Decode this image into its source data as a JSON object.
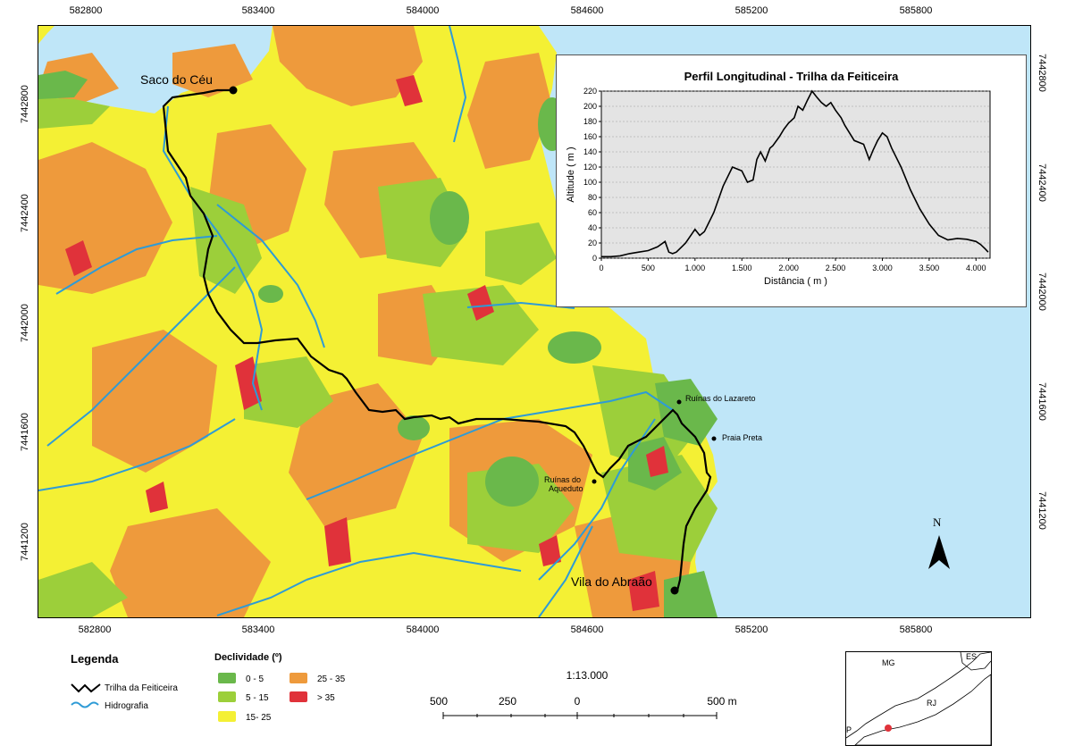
{
  "map": {
    "x_ticks": [
      "582800",
      "583400",
      "584000",
      "584600",
      "585200",
      "585800"
    ],
    "y_ticks": [
      "7442800",
      "7442400",
      "7442000",
      "7441600",
      "7441200"
    ],
    "places": {
      "saco_do_ceu": "Saco do Céu",
      "vila_do_abraao": "Vila do Abraão",
      "ruinas_lazareto": "Ruínas do Lazareto",
      "praia_preta": "Praia Preta",
      "ruinas_aqueduto_1": "Ruínas do",
      "ruinas_aqueduto_2": "Aqueduto"
    },
    "north_label": "N",
    "colors": {
      "water": "#bfe6f8",
      "slope_0_5": "#6ab84b",
      "slope_5_15": "#9ccf3a",
      "slope_15_25": "#f4f034",
      "slope_25_35": "#ee9a3c",
      "slope_gt_35": "#e0323a",
      "trail": "#000000",
      "rivers": "#2e9bd6"
    }
  },
  "profile": {
    "title": "Perfil Longitudinal - Trilha da Feiticeira",
    "y_label": "Altitude ( m )",
    "x_label": "Distância ( m )"
  },
  "chart_data": {
    "type": "line",
    "title": "Perfil Longitudinal - Trilha da Feiticeira",
    "xlabel": "Distância ( m )",
    "ylabel": "Altitude ( m )",
    "xlim": [
      0,
      4150
    ],
    "ylim": [
      0,
      220
    ],
    "x_tick_labels": [
      "0",
      "500",
      "1.000",
      "1.500",
      "2.000",
      "2.500",
      "3.000",
      "3.500",
      "4.000"
    ],
    "x_tick_values": [
      0,
      500,
      1000,
      1500,
      2000,
      2500,
      3000,
      3500,
      4000
    ],
    "y_tick_values": [
      0,
      20,
      40,
      60,
      80,
      100,
      120,
      140,
      160,
      180,
      200,
      220
    ],
    "grid": true,
    "series": [
      {
        "x": [
          0,
          100,
          200,
          300,
          400,
          500,
          600,
          680,
          720,
          760,
          800,
          900,
          1000,
          1050,
          1100,
          1200,
          1300,
          1400,
          1500,
          1560,
          1620,
          1660,
          1700,
          1750,
          1800,
          1830,
          1900,
          1950,
          2000,
          2060,
          2100,
          2150,
          2200,
          2250,
          2300,
          2350,
          2400,
          2450,
          2500,
          2560,
          2600,
          2700,
          2800,
          2860,
          2900,
          2950,
          3000,
          3050,
          3100,
          3200,
          3300,
          3400,
          3500,
          3600,
          3700,
          3800,
          3900,
          4000,
          4050,
          4100,
          4130
        ],
        "y": [
          2,
          2,
          3,
          6,
          8,
          10,
          15,
          22,
          8,
          6,
          8,
          20,
          38,
          30,
          35,
          60,
          95,
          120,
          115,
          100,
          103,
          130,
          140,
          128,
          145,
          148,
          160,
          170,
          178,
          185,
          200,
          195,
          208,
          220,
          212,
          205,
          200,
          205,
          195,
          185,
          175,
          155,
          150,
          130,
          142,
          155,
          165,
          160,
          145,
          120,
          90,
          65,
          45,
          30,
          24,
          26,
          25,
          22,
          18,
          12,
          8
        ]
      }
    ]
  },
  "legend": {
    "title": "Legenda",
    "trail": "Trilha da Feiticeira",
    "hydro": "Hidrografia",
    "slope_title": "Declividade (º)",
    "classes": [
      "0 - 5",
      "5 - 15",
      "15- 25",
      "25 - 35",
      "> 35"
    ]
  },
  "scale": {
    "ratio": "1:13.000",
    "labels": [
      "500",
      "250",
      "0",
      "500 m"
    ]
  },
  "inset": {
    "labels": [
      "MG",
      "ES",
      "RJ",
      "P"
    ]
  }
}
